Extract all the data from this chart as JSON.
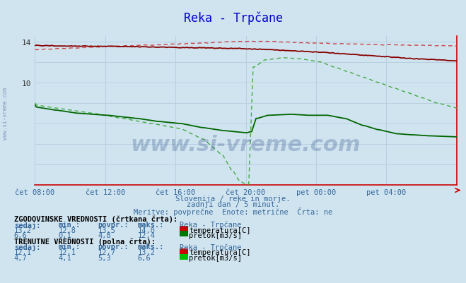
{
  "title": "Reka - Trpčane",
  "background_color": "#d0e4f0",
  "plot_bg_color": "#d0e4f0",
  "fig_bg_color": "#d0e4f0",
  "xlabel": "",
  "ylabel": "",
  "xlim": [
    0,
    288
  ],
  "ylim": [
    0,
    14.5
  ],
  "yticks": [
    10,
    14
  ],
  "x_tick_labels": [
    "čet 08:00",
    "čet 12:00",
    "čet 16:00",
    "čet 20:00",
    "pet 00:00",
    "pet 04:00"
  ],
  "x_tick_positions": [
    0,
    48,
    96,
    144,
    192,
    240
  ],
  "grid_color": "#b8cfe0",
  "temp_color_solid": "#880000",
  "temp_color_dashed": "#cc4444",
  "flow_color_solid": "#006600",
  "flow_color_dashed": "#44aa44",
  "subtitle1": "Slovenija / reke in morje.",
  "subtitle2": "zadnji dan / 5 minut.",
  "subtitle3": "Meritve: povprečne  Enote: metrične  Črta: ne",
  "legend_title_hist": "ZGODOVINSKE VREDNOSTI (črtkana črta):",
  "legend_headers": [
    "sedaj:",
    "min.:",
    "povpr.:",
    "maks.:",
    "Reka - Trpčane"
  ],
  "hist_temp": {
    "sedaj": "13,2",
    "min": "12,8",
    "povpr": "13,5",
    "maks": "14,0",
    "label": "temperatura[C]"
  },
  "hist_flow": {
    "sedaj": "6,6",
    "min": "0,1",
    "povpr": "4,8",
    "maks": "12,4",
    "label": "pretok[m3/s]"
  },
  "legend_title_curr": "TRENUTNE VREDNOSTI (polna črta):",
  "curr_temp": {
    "sedaj": "12,1",
    "min": "12,1",
    "povpr": "12,7",
    "maks": "13,2",
    "label": "temperatura[C]"
  },
  "curr_flow": {
    "sedaj": "4,7",
    "min": "4,1",
    "povpr": "5,3",
    "maks": "6,6",
    "label": "pretok[m3/s]"
  },
  "watermark": "www.si-vreme.com",
  "left_label": "www.si-vreme.com",
  "icon_red": "#cc0000",
  "icon_green_hist": "#007700",
  "icon_green_curr": "#00bb00",
  "text_color_blue": "#336699",
  "text_color_dark": "#000033",
  "title_color": "#0000cc"
}
